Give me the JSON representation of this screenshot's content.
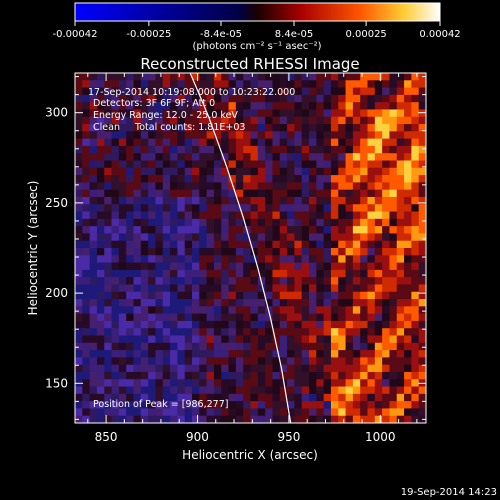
{
  "footer": {
    "timestamp": "19-Sep-2014 14:23"
  },
  "colorbar": {
    "tick_labels": [
      "-0.00042",
      "-0.00025",
      "-8.4e-05",
      "8.4e-05",
      "0.00025",
      "0.00042"
    ],
    "tick_values": [
      -0.00042,
      -0.00025,
      -8.4e-05,
      8.4e-05,
      0.00025,
      0.00042
    ],
    "range": [
      -0.00042,
      0.00042
    ],
    "units_label": "(photons cm⁻² s⁻¹ asec⁻²)",
    "colors": [
      "#0000ff",
      "#000033",
      "#330000",
      "#cc0000",
      "#ff6600",
      "#ffcc33",
      "#ffffff"
    ]
  },
  "chart_data": {
    "type": "heatmap",
    "title": "Reconstructed RHESSI Image",
    "xlabel": "Heliocentric X (arcsec)",
    "ylabel": "Heliocentric Y (arcsec)",
    "xlim": [
      833,
      1025
    ],
    "ylim": [
      128,
      322
    ],
    "xticks": [
      850,
      900,
      950,
      1000
    ],
    "yticks": [
      150,
      200,
      250,
      300
    ],
    "grid": false,
    "annotations": [
      "17-Sep-2014 10:19:08.000 to 10:23:22.000",
      "Detectors: 3F 6F 9F; Att 0",
      "Energy Range: 12.0 - 25.0 keV",
      "Clean     Total counts: 1.81E+03"
    ],
    "peak_label": "Position of Peak = [986,277]",
    "peak_position": [
      986,
      277
    ],
    "limb_curve": [
      [
        896,
        322
      ],
      [
        906,
        298
      ],
      [
        916,
        270
      ],
      [
        925,
        242
      ],
      [
        933,
        214
      ],
      [
        940,
        186
      ],
      [
        946,
        158
      ],
      [
        951,
        128
      ]
    ],
    "grid_cells": {
      "nx": 48,
      "ny": 48
    }
  }
}
